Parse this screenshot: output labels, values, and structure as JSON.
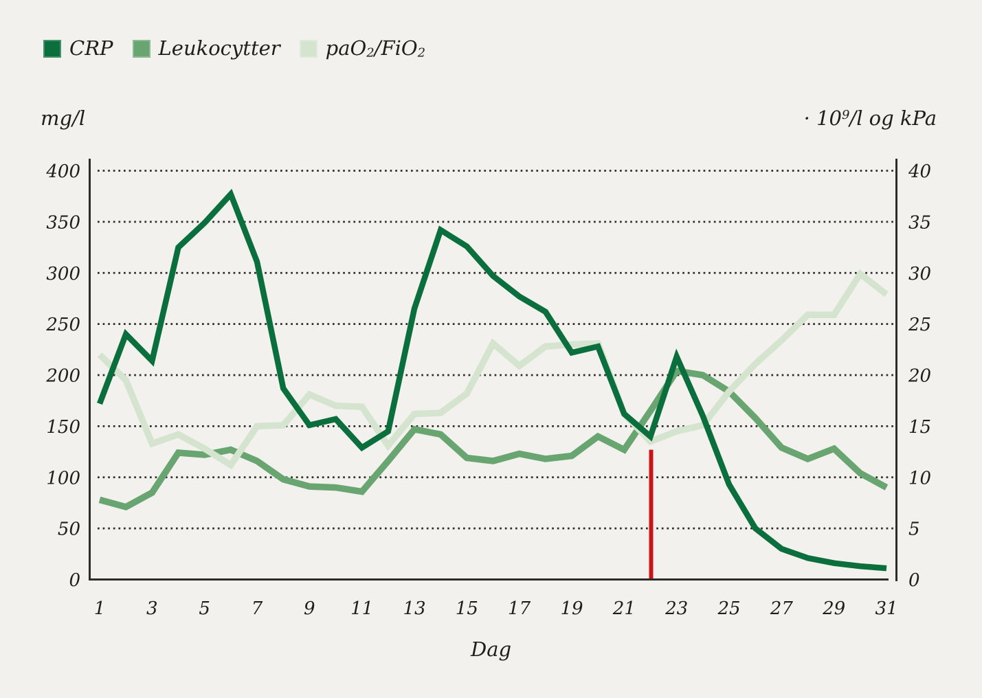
{
  "legend": {
    "items": [
      {
        "label": "CRP",
        "color": "#0a6e3d"
      },
      {
        "label": "Leukocytter",
        "color": "#68a571"
      },
      {
        "label": "paO₂/FiO₂",
        "color": "#d5e4ce"
      }
    ]
  },
  "axis_titles": {
    "left": "mg/l",
    "right": "· 10⁹/l og kPa"
  },
  "x_caption": "Dag",
  "colors": {
    "background": "#f2f1ed",
    "axis": "#2e2c28",
    "grid_dots": "#2e2c28",
    "marker_red": "#c91418"
  },
  "chart_data": {
    "type": "line",
    "title": "",
    "xlabel": "Dag",
    "x": [
      1,
      2,
      3,
      4,
      5,
      6,
      7,
      8,
      9,
      10,
      11,
      12,
      13,
      14,
      15,
      16,
      17,
      18,
      19,
      20,
      21,
      22,
      23,
      24,
      25,
      26,
      27,
      28,
      29,
      30,
      31
    ],
    "x_tick_labels": [
      1,
      3,
      5,
      7,
      9,
      11,
      13,
      15,
      17,
      19,
      21,
      23,
      25,
      27,
      29,
      31
    ],
    "left_axis": {
      "title": "mg/l",
      "range": [
        0,
        400
      ],
      "ticks": [
        400,
        350,
        300,
        250,
        200,
        150,
        100,
        50,
        0
      ]
    },
    "right_axis": {
      "title": "· 10⁹/l og kPa",
      "range": [
        0,
        40
      ],
      "ticks": [
        40,
        35,
        30,
        25,
        20,
        15,
        10,
        5,
        0
      ]
    },
    "grid": "horizontal-dotted",
    "legend_position": "top-left",
    "series": [
      {
        "name": "CRP",
        "unit": "mg/l",
        "axis": "left",
        "color": "#0a6e3d",
        "values": [
          172,
          240,
          214,
          325,
          349,
          377,
          311,
          187,
          151,
          157,
          129,
          145,
          265,
          342,
          326,
          297,
          277,
          262,
          222,
          228,
          162,
          140,
          218,
          160,
          93,
          50,
          30,
          21,
          16,
          13,
          11
        ]
      },
      {
        "name": "Leukocytter",
        "unit": "·10⁹/l",
        "axis": "right",
        "color": "#68a571",
        "values": [
          7.8,
          7.1,
          8.5,
          12.4,
          12.2,
          12.7,
          11.6,
          9.8,
          9.1,
          9.0,
          8.6,
          11.6,
          14.7,
          14.2,
          11.9,
          11.6,
          12.3,
          11.8,
          12.1,
          14.0,
          12.7,
          16.5,
          20.4,
          20.0,
          18.4,
          15.8,
          12.9,
          11.8,
          12.8,
          10.4,
          9.0
        ]
      },
      {
        "name": "paO₂/FiO₂",
        "unit": "kPa",
        "axis": "right",
        "color": "#d5e4ce",
        "values": [
          22.0,
          19.5,
          13.3,
          14.2,
          12.8,
          11.2,
          15.0,
          15.1,
          18.1,
          17.0,
          16.9,
          13.1,
          16.2,
          16.3,
          18.2,
          23.1,
          20.9,
          22.8,
          23.0,
          23.1,
          16.2,
          13.5,
          14.5,
          15.1,
          18.4,
          21.1,
          23.4,
          25.9,
          25.9,
          29.9,
          27.9
        ]
      }
    ],
    "annotations": [
      {
        "type": "vertical-line",
        "x": 22,
        "y_from": 0,
        "y_to": 127,
        "unit": "mg/l",
        "color": "#c91418"
      }
    ]
  }
}
